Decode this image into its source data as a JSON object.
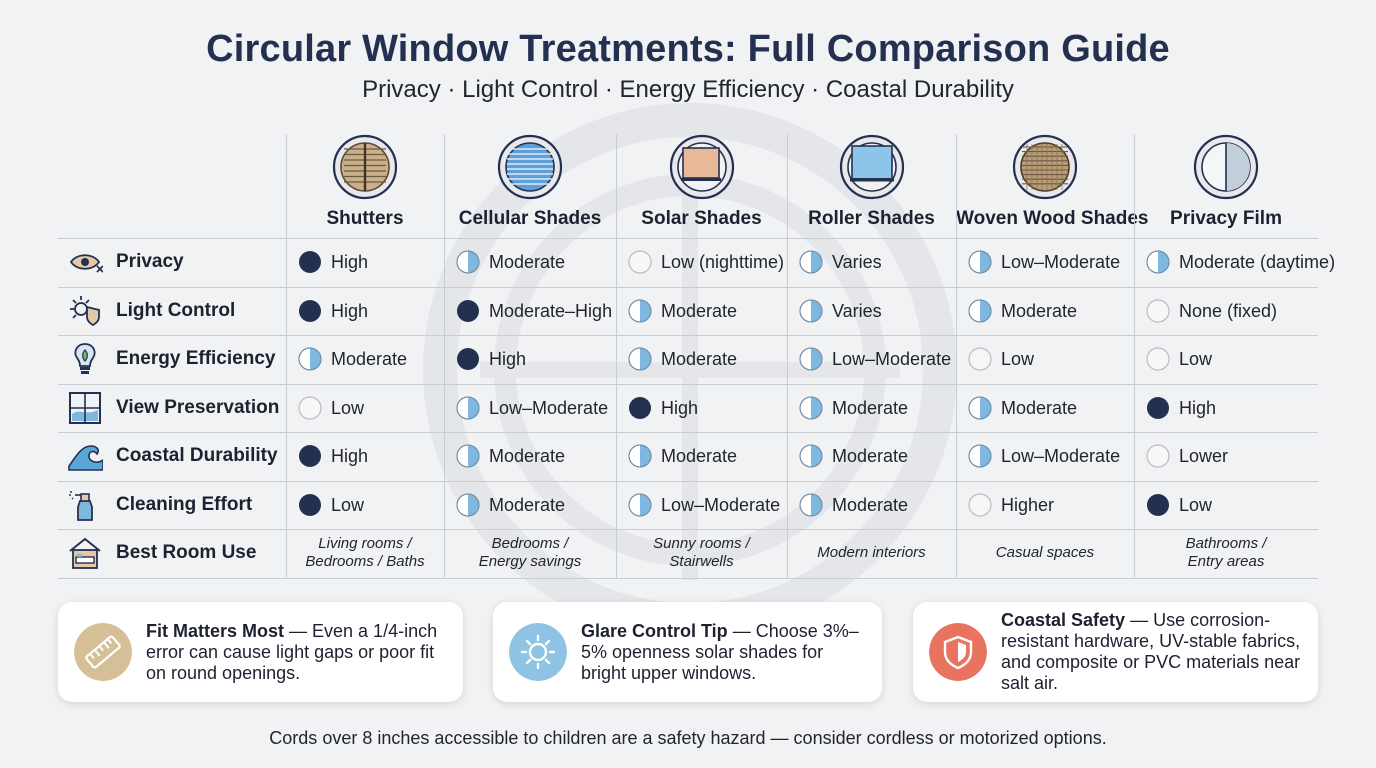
{
  "title": "Circular Window Treatments: Full Comparison Guide",
  "subtitle": "Privacy · Light Control · Energy Efficiency · Coastal Durability",
  "columns": [
    {
      "name": "Shutters",
      "icon": "round-shutter-icon"
    },
    {
      "name": "Cellular Shades",
      "icon": "round-cellular-shade-icon"
    },
    {
      "name": "Solar Shades",
      "icon": "round-solar-shade-icon"
    },
    {
      "name": "Roller Shades",
      "icon": "round-roller-shade-icon"
    },
    {
      "name": "Woven Wood Shades",
      "icon": "round-woven-wood-icon"
    },
    {
      "name": "Privacy Film",
      "icon": "round-privacy-film-icon"
    }
  ],
  "rows": [
    {
      "label": "Privacy",
      "icon": "eye-icon",
      "cells": [
        {
          "level": "full",
          "text": "High"
        },
        {
          "level": "half",
          "text": "Moderate"
        },
        {
          "level": "empty",
          "text": "Low (nighttime)"
        },
        {
          "level": "half",
          "text": "Varies"
        },
        {
          "level": "half",
          "text": "Low–Moderate"
        },
        {
          "level": "half",
          "text": "Moderate (daytime)"
        }
      ]
    },
    {
      "label": "Light Control",
      "icon": "sun-shield-icon",
      "cells": [
        {
          "level": "full",
          "text": "High"
        },
        {
          "level": "full",
          "text": "Moderate–High"
        },
        {
          "level": "half",
          "text": "Moderate"
        },
        {
          "level": "half",
          "text": "Varies"
        },
        {
          "level": "half",
          "text": "Moderate"
        },
        {
          "level": "empty",
          "text": "None (fixed)"
        }
      ]
    },
    {
      "label": "Energy Efficiency",
      "icon": "lightbulb-icon",
      "cells": [
        {
          "level": "half",
          "text": "Moderate"
        },
        {
          "level": "full",
          "text": "High"
        },
        {
          "level": "half",
          "text": "Moderate"
        },
        {
          "level": "half",
          "text": "Low–Moderate"
        },
        {
          "level": "empty",
          "text": "Low"
        },
        {
          "level": "empty",
          "text": "Low"
        }
      ]
    },
    {
      "label": "View Preservation",
      "icon": "window-view-icon",
      "cells": [
        {
          "level": "empty",
          "text": "Low"
        },
        {
          "level": "half",
          "text": "Low–Moderate"
        },
        {
          "level": "full",
          "text": "High"
        },
        {
          "level": "half",
          "text": "Moderate"
        },
        {
          "level": "half",
          "text": "Moderate"
        },
        {
          "level": "full",
          "text": "High"
        }
      ]
    },
    {
      "label": "Coastal Durability",
      "icon": "wave-icon",
      "cells": [
        {
          "level": "full",
          "text": "High"
        },
        {
          "level": "half",
          "text": "Moderate"
        },
        {
          "level": "half",
          "text": "Moderate"
        },
        {
          "level": "half",
          "text": "Moderate"
        },
        {
          "level": "half",
          "text": "Low–Moderate"
        },
        {
          "level": "empty",
          "text": "Lower"
        }
      ]
    },
    {
      "label": "Cleaning Effort",
      "icon": "spray-bottle-icon",
      "cells": [
        {
          "level": "full",
          "text": "Low"
        },
        {
          "level": "half",
          "text": "Moderate"
        },
        {
          "level": "half",
          "text": "Low–Moderate"
        },
        {
          "level": "half",
          "text": "Moderate"
        },
        {
          "level": "empty",
          "text": "Higher"
        },
        {
          "level": "full",
          "text": "Low"
        }
      ]
    }
  ],
  "best_room": {
    "label": "Best Room Use",
    "icon": "house-bed-icon",
    "cells": [
      [
        "Living rooms /",
        "Bedrooms / Baths"
      ],
      [
        "Bedrooms /",
        "Energy savings"
      ],
      [
        "Sunny rooms /",
        "Stairwells"
      ],
      [
        "Modern interiors"
      ],
      [
        "Casual spaces"
      ],
      [
        "Bathrooms /",
        "Entry areas"
      ]
    ]
  },
  "tips": [
    {
      "icon": "ruler-icon",
      "color": "#d4bf96",
      "title": "Fit Matters Most",
      "text": " — Even a 1/4-inch error can cause light gaps or poor fit on round openings."
    },
    {
      "icon": "sun-icon",
      "color": "#8ec3e3",
      "title": "Glare Control Tip",
      "text": " — Choose 3%–5% openness solar shades for bright upper windows."
    },
    {
      "icon": "shield-icon",
      "color": "#e8735e",
      "title": "Coastal Safety",
      "text": " — Use corrosion-resistant hardware, UV-stable fabrics, and composite or PVC materials near salt air."
    }
  ],
  "footer": "Cords over 8 inches accessible to children are a safety hazard — consider cordless or motorized options.",
  "colors": {
    "full": "#243050",
    "half_left": "#ffffff",
    "half_right": "#7fb8de",
    "empty": "#f7f7f7",
    "title": "#243050"
  }
}
